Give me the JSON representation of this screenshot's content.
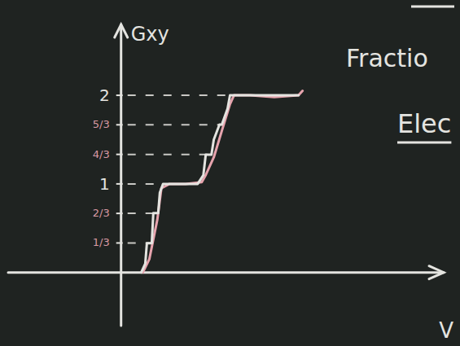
{
  "chart_data": {
    "type": "line",
    "y_label": "Gxy",
    "x_label": "V",
    "annotations": [
      "Fractio",
      "Elec"
    ],
    "xlim": [
      -1.4,
      4.0
    ],
    "ylim": [
      -0.6,
      2.8
    ],
    "yticks": [
      {
        "value": 0.333,
        "label": "1/3"
      },
      {
        "value": 0.667,
        "label": "2/3"
      },
      1,
      {
        "value": 1.333,
        "label": "4/3"
      },
      {
        "value": 1.667,
        "label": "5/3"
      },
      2
    ],
    "grid": true,
    "tick_labels": "y",
    "series": [
      {
        "color": "#e6a3ad",
        "x": [
          0.27,
          0.35,
          0.45,
          0.5,
          0.6,
          0.8,
          1.0,
          1.05,
          1.15,
          1.25,
          1.35,
          1.4,
          1.6,
          1.9,
          2.2,
          2.25
        ],
        "values": [
          0.0,
          0.15,
          0.6,
          0.95,
          1.0,
          1.0,
          1.02,
          1.1,
          1.3,
          1.6,
          1.9,
          2.0,
          2.0,
          1.98,
          2.0,
          2.05
        ]
      },
      {
        "color": "#e4e4e0",
        "x": [
          0.25,
          0.3,
          0.32,
          0.38,
          0.4,
          0.46,
          0.48,
          0.52,
          0.55,
          0.9,
          0.95,
          1.02,
          1.05,
          1.12,
          1.15,
          1.22,
          1.25,
          1.32,
          1.35,
          1.4,
          2.2
        ],
        "values": [
          0.0,
          0.1,
          0.33,
          0.33,
          0.67,
          0.67,
          0.9,
          1.0,
          1.0,
          1.0,
          1.0,
          1.1,
          1.33,
          1.33,
          1.5,
          1.67,
          1.67,
          1.85,
          2.0,
          2.0,
          2.0
        ]
      }
    ]
  }
}
